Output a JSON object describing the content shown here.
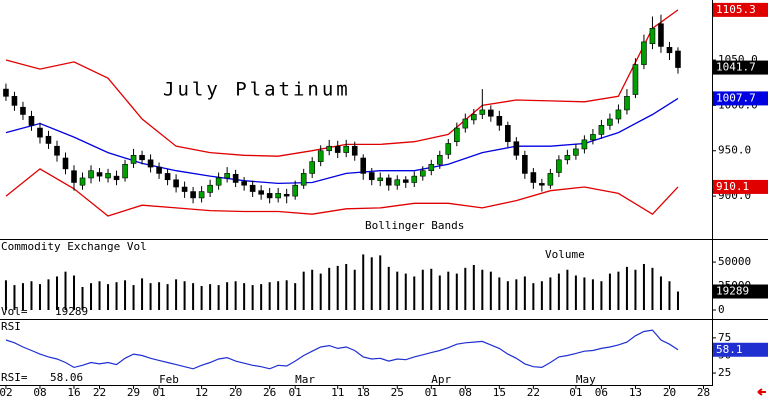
{
  "chart_data": [
    {
      "type": "candlestick",
      "title": "July Platinum",
      "annotation": "Bollinger Bands",
      "open": [
        1018,
        1010,
        998,
        988,
        975,
        966,
        955,
        942,
        928,
        912,
        920,
        926,
        920,
        922,
        920,
        936,
        945,
        940,
        932,
        925,
        918,
        910,
        905,
        898,
        904,
        912,
        920,
        924,
        916,
        912,
        906,
        903,
        898,
        902,
        900,
        912,
        925,
        938,
        950,
        955,
        948,
        955,
        942,
        926,
        917,
        920,
        912,
        918,
        915,
        922,
        928,
        935,
        946,
        960,
        975,
        984,
        990,
        995,
        988,
        978,
        960,
        945,
        926,
        914,
        912,
        926,
        940,
        945,
        952,
        962,
        968,
        978,
        985,
        995,
        1012,
        1045,
        1068,
        1090,
        1064,
        1060
      ],
      "high": [
        1024,
        1015,
        1004,
        994,
        981,
        972,
        961,
        948,
        934,
        926,
        934,
        931,
        930,
        928,
        940,
        952,
        950,
        946,
        937,
        930,
        924,
        916,
        910,
        911,
        918,
        926,
        932,
        929,
        921,
        917,
        912,
        909,
        909,
        908,
        917,
        930,
        943,
        956,
        962,
        961,
        962,
        960,
        946,
        931,
        926,
        924,
        923,
        922,
        927,
        933,
        940,
        950,
        963,
        981,
        991,
        996,
        1018,
        1000,
        994,
        982,
        965,
        950,
        931,
        919,
        930,
        945,
        951,
        958,
        967,
        974,
        984,
        991,
        1001,
        1018,
        1052,
        1078,
        1098,
        1100,
        1070,
        1064
      ],
      "low": [
        1005,
        994,
        984,
        972,
        958,
        952,
        938,
        924,
        906,
        907,
        914,
        916,
        915,
        912,
        916,
        931,
        935,
        926,
        919,
        912,
        904,
        898,
        892,
        893,
        899,
        907,
        915,
        910,
        906,
        899,
        896,
        892,
        893,
        892,
        896,
        908,
        920,
        933,
        945,
        942,
        943,
        939,
        918,
        912,
        911,
        906,
        907,
        909,
        910,
        917,
        923,
        930,
        941,
        955,
        970,
        979,
        985,
        982,
        972,
        954,
        940,
        919,
        908,
        905,
        908,
        921,
        935,
        940,
        947,
        957,
        963,
        973,
        980,
        990,
        1008,
        1040,
        1062,
        1058,
        1050,
        1035
      ],
      "close": [
        1010,
        1000,
        990,
        978,
        965,
        958,
        945,
        930,
        915,
        920,
        928,
        922,
        925,
        918,
        935,
        945,
        940,
        932,
        925,
        918,
        910,
        905,
        898,
        905,
        912,
        920,
        925,
        915,
        912,
        905,
        902,
        898,
        903,
        900,
        912,
        925,
        938,
        950,
        955,
        948,
        955,
        945,
        925,
        918,
        920,
        912,
        918,
        915,
        922,
        928,
        935,
        945,
        958,
        975,
        985,
        990,
        995,
        988,
        978,
        960,
        945,
        925,
        915,
        912,
        925,
        940,
        945,
        952,
        962,
        968,
        978,
        985,
        995,
        1010,
        1045,
        1070,
        1085,
        1065,
        1058,
        1041.7
      ],
      "up_color": "#00a000",
      "down_color": "#000000",
      "bands_x": [
        0,
        4,
        8,
        12,
        16,
        20,
        24,
        28,
        32,
        36,
        40,
        44,
        48,
        52,
        56,
        60,
        64,
        68,
        72,
        76,
        79
      ],
      "bands": [
        {
          "color": "#e00000",
          "values": [
            1050,
            1040,
            1048,
            1030,
            985,
            955,
            948,
            945,
            944,
            950,
            957,
            957,
            960,
            968,
            1000,
            1006,
            1005,
            1004,
            1010,
            1085,
            1105.3
          ]
        },
        {
          "color": "#0000e0",
          "values": [
            970,
            980,
            965,
            948,
            936,
            928,
            922,
            917,
            914,
            915,
            925,
            928,
            928,
            935,
            948,
            955,
            955,
            958,
            970,
            990,
            1007.7
          ]
        },
        {
          "color": "#e00000",
          "values": [
            900,
            930,
            908,
            878,
            890,
            887,
            884,
            883,
            883,
            880,
            886,
            887,
            892,
            892,
            887,
            895,
            906,
            910,
            903,
            880,
            910.1
          ]
        }
      ],
      "markers": [
        {
          "value": 1105.3,
          "color": "#e00000"
        },
        {
          "value": 1041.7,
          "color": "#000000"
        },
        {
          "value": 1007.7,
          "color": "#0000e0"
        },
        {
          "value": 910.1,
          "color": "#e00000"
        }
      ],
      "ylim": [
        856,
        1114
      ],
      "yticks": [
        {
          "value": 900,
          "label": "900.0"
        },
        {
          "value": 950,
          "label": "950.0"
        },
        {
          "value": 1000,
          "label": "1000.0"
        },
        {
          "value": 1050,
          "label": "1050.0"
        }
      ]
    },
    {
      "type": "bar",
      "title": "Commodity Exchange Vol",
      "label": "Volume",
      "value_prefix": "Vol=",
      "values": [
        31000,
        26000,
        28000,
        30000,
        27000,
        32000,
        35000,
        40000,
        36000,
        24000,
        28000,
        30000,
        27000,
        29000,
        31000,
        26000,
        33000,
        28000,
        29000,
        27000,
        32000,
        30000,
        28000,
        25000,
        27000,
        26000,
        29000,
        30000,
        28000,
        26000,
        27000,
        29000,
        30000,
        31000,
        28000,
        40000,
        42000,
        38000,
        44000,
        46000,
        48000,
        42000,
        58000,
        55000,
        57000,
        45000,
        40000,
        38000,
        35000,
        42000,
        43000,
        36000,
        40000,
        38000,
        44000,
        47000,
        42000,
        40000,
        34000,
        30000,
        32000,
        35000,
        28000,
        30000,
        34000,
        38000,
        42000,
        36000,
        34000,
        32000,
        30000,
        38000,
        40000,
        45000,
        42000,
        48000,
        44000,
        35000,
        30000,
        19289
      ],
      "color": "#000000",
      "marker_color": "#000000",
      "ylim": [
        0,
        72000
      ],
      "yticks": [
        0,
        25000,
        50000
      ]
    },
    {
      "type": "line",
      "title": "RSI",
      "value_prefix": "RSI=",
      "values": [
        72,
        68,
        62,
        57,
        52,
        48,
        45,
        40,
        33,
        36,
        40,
        38,
        40,
        37,
        46,
        52,
        50,
        46,
        43,
        40,
        37,
        34,
        31,
        36,
        40,
        45,
        47,
        42,
        39,
        36,
        34,
        31,
        36,
        35,
        42,
        50,
        56,
        62,
        64,
        60,
        62,
        57,
        48,
        45,
        46,
        42,
        45,
        44,
        48,
        51,
        54,
        57,
        61,
        66,
        68,
        69,
        70,
        65,
        60,
        52,
        46,
        38,
        34,
        33,
        40,
        48,
        50,
        53,
        56,
        57,
        60,
        62,
        65,
        69,
        78,
        84,
        86,
        72,
        66,
        58.06
      ],
      "color": "#2030d0",
      "marker": {
        "value": 58.1,
        "color": "#2030d0"
      },
      "ylim": [
        8,
        99
      ],
      "yticks": [
        25,
        50,
        75
      ],
      "xlim": [
        -0.7,
        83
      ],
      "xticks": [
        {
          "value": 0,
          "label": "02"
        },
        {
          "value": 4,
          "label": "08"
        },
        {
          "value": 8,
          "label": "16"
        },
        {
          "value": 11,
          "label": "22"
        },
        {
          "value": 15,
          "label": "29"
        },
        {
          "value": 18,
          "label": "01"
        },
        {
          "value": 23,
          "label": "12"
        },
        {
          "value": 27,
          "label": "20"
        },
        {
          "value": 31,
          "label": "26"
        },
        {
          "value": 34,
          "label": "01"
        },
        {
          "value": 39,
          "label": "11"
        },
        {
          "value": 42,
          "label": "18"
        },
        {
          "value": 46,
          "label": "25"
        },
        {
          "value": 50,
          "label": "01"
        },
        {
          "value": 54,
          "label": "08"
        },
        {
          "value": 58,
          "label": "15"
        },
        {
          "value": 62,
          "label": "22"
        },
        {
          "value": 67,
          "label": "01"
        },
        {
          "value": 70,
          "label": "06"
        },
        {
          "value": 74,
          "label": "13"
        },
        {
          "value": 78,
          "label": "20"
        },
        {
          "value": 82,
          "label": "28"
        }
      ],
      "months": [
        {
          "value": 18,
          "label": "Feb"
        },
        {
          "value": 34,
          "label": "Mar"
        },
        {
          "value": 50,
          "label": "Apr"
        },
        {
          "value": 67,
          "label": "May"
        }
      ]
    }
  ]
}
